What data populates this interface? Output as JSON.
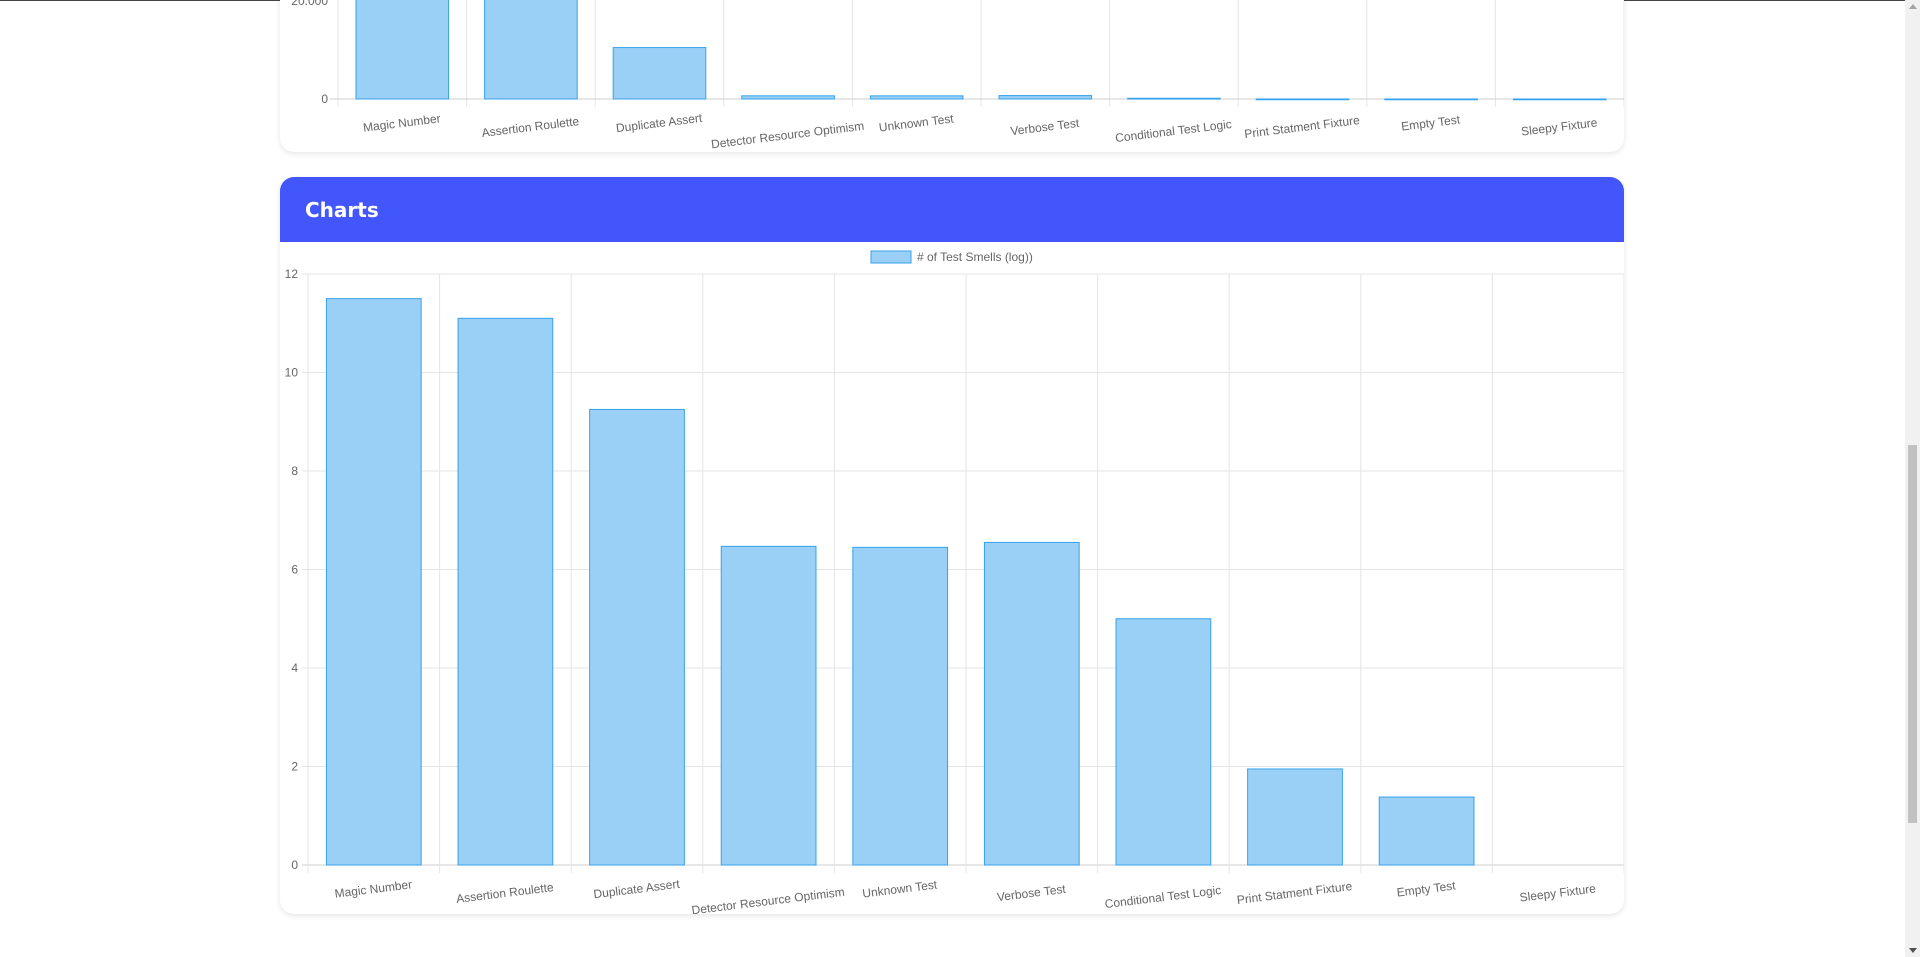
{
  "section": {
    "title": "Charts"
  },
  "colors": {
    "header": "#4356fb",
    "bar_fill": "#9ad0f5",
    "bar_stroke": "#36a2eb",
    "grid": "#e5e5e5"
  },
  "chart_data": [
    {
      "type": "bar",
      "categories": [
        "Magic Number",
        "Assertion Roulette",
        "Duplicate Assert",
        "Detector Resource Optimism",
        "Unknown Test",
        "Verbose Test",
        "Conditional Test Logic",
        "Print Statment Fixture",
        "Empty Test",
        "Sleepy Fixture"
      ],
      "series": [
        {
          "values": [
            100000,
            66000,
            10500,
            650,
            640,
            700,
            150,
            7,
            4,
            1
          ]
        }
      ],
      "yticks_visible": [
        "20.000",
        "0"
      ],
      "title": "",
      "xlabel": "",
      "ylabel": ""
    },
    {
      "type": "bar",
      "categories": [
        "Magic Number",
        "Assertion Roulette",
        "Duplicate Assert",
        "Detector Resource Optimism",
        "Unknown Test",
        "Verbose Test",
        "Conditional Test Logic",
        "Print Statment Fixture",
        "Empty Test",
        "Sleepy Fixture"
      ],
      "series": [
        {
          "name": "# of Test Smells (log))",
          "values": [
            11.5,
            11.1,
            9.25,
            6.47,
            6.45,
            6.55,
            5.0,
            1.95,
            1.38,
            0
          ]
        }
      ],
      "ylim": [
        0,
        12
      ],
      "yticks": [
        "0",
        "2",
        "4",
        "6",
        "8",
        "10",
        "12"
      ],
      "legend": "top-center",
      "grid": true,
      "title": "",
      "xlabel": "",
      "ylabel": ""
    }
  ]
}
